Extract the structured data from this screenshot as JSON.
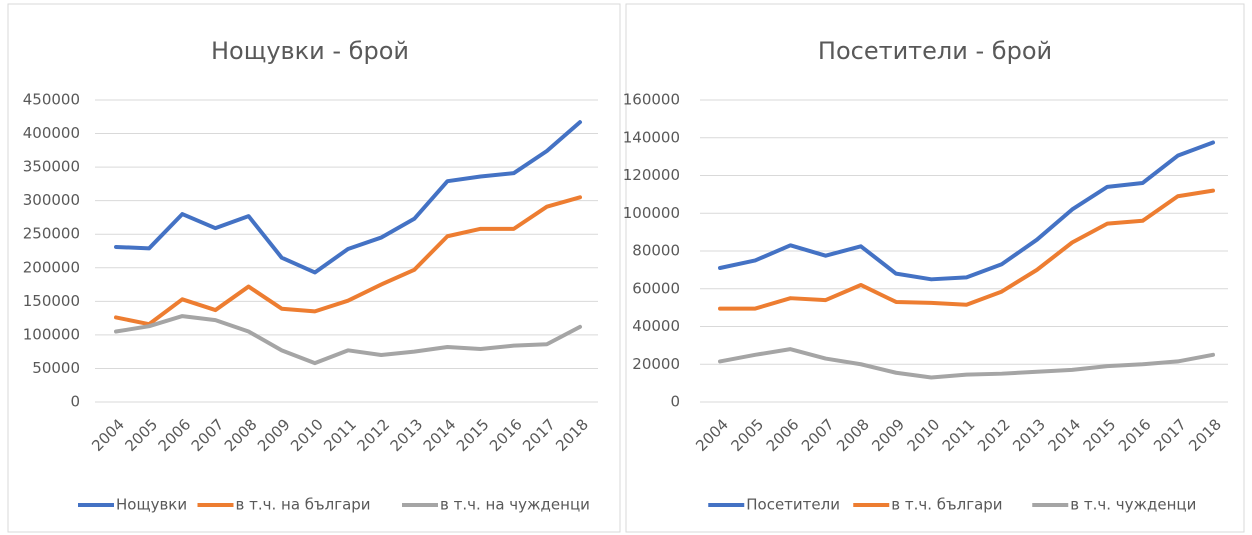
{
  "chart_data": [
    {
      "type": "line",
      "title": "Нощувки - брой",
      "categories": [
        "2004",
        "2005",
        "2006",
        "2007",
        "2008",
        "2009",
        "2010",
        "2011",
        "2012",
        "2013",
        "2014",
        "2015",
        "2016",
        "2017",
        "2018"
      ],
      "series": [
        {
          "name": "Нощувки",
          "color": "#4472c4",
          "values": [
            231000,
            229000,
            280000,
            259000,
            277000,
            215000,
            193000,
            228000,
            245000,
            273000,
            329000,
            336000,
            341000,
            374000,
            417000
          ]
        },
        {
          "name": "в т.ч. на българи",
          "color": "#ed7d31",
          "values": [
            126000,
            116000,
            153000,
            137000,
            172000,
            139000,
            135000,
            151000,
            175000,
            197000,
            247000,
            258000,
            258000,
            291000,
            305000
          ]
        },
        {
          "name": "в т.ч. на чужденци",
          "color": "#a5a5a5",
          "values": [
            105000,
            113000,
            128000,
            122000,
            105000,
            77000,
            58000,
            77000,
            70000,
            75000,
            82000,
            79000,
            84000,
            86000,
            112000
          ]
        }
      ],
      "ylim": [
        0,
        450000
      ],
      "yticks": [
        0,
        50000,
        100000,
        150000,
        200000,
        250000,
        300000,
        350000,
        400000,
        450000
      ],
      "grid": true,
      "legend": "bottom"
    },
    {
      "type": "line",
      "title": "Посетители - брой",
      "categories": [
        "2004",
        "2005",
        "2006",
        "2007",
        "2008",
        "2009",
        "2010",
        "2011",
        "2012",
        "2013",
        "2014",
        "2015",
        "2016",
        "2017",
        "2018"
      ],
      "series": [
        {
          "name": "Посетители",
          "color": "#4472c4",
          "values": [
            71000,
            75000,
            83000,
            77500,
            82500,
            68000,
            65000,
            66000,
            73000,
            86000,
            102000,
            114000,
            116000,
            130500,
            137500
          ]
        },
        {
          "name": "в т.ч. българи",
          "color": "#ed7d31",
          "values": [
            49500,
            49500,
            55000,
            54000,
            62000,
            53000,
            52500,
            51500,
            58500,
            70000,
            84500,
            94500,
            96000,
            109000,
            112000
          ]
        },
        {
          "name": "в т.ч. чужденци",
          "color": "#a5a5a5",
          "values": [
            21500,
            25000,
            28000,
            23000,
            20000,
            15500,
            13000,
            14500,
            15000,
            16000,
            17000,
            19000,
            20000,
            21500,
            25000
          ]
        }
      ],
      "ylim": [
        0,
        160000
      ],
      "yticks": [
        0,
        20000,
        40000,
        60000,
        80000,
        100000,
        120000,
        140000,
        160000
      ],
      "grid": true,
      "legend": "bottom"
    }
  ]
}
